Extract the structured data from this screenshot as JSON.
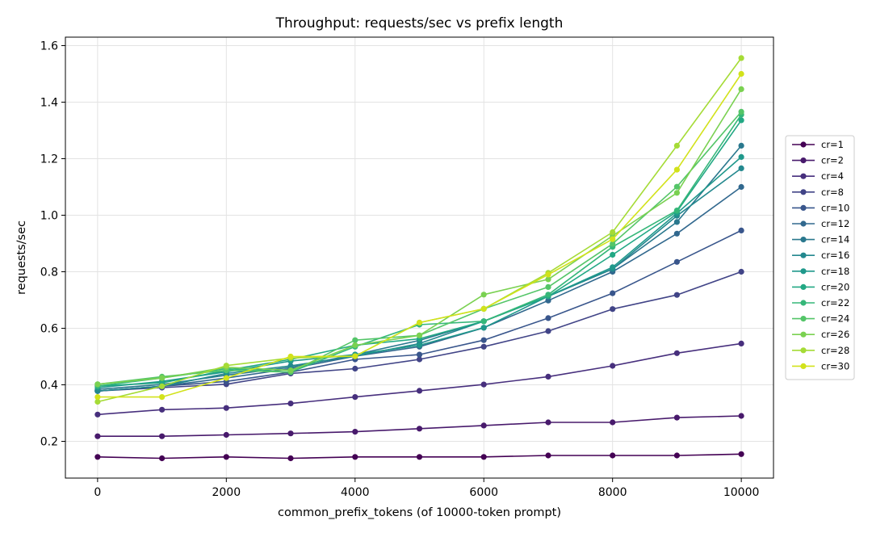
{
  "chart_data": {
    "type": "line",
    "title": "Throughput: requests/sec vs prefix length",
    "xlabel": "common_prefix_tokens (of 10000-token prompt)",
    "ylabel": "requests/sec",
    "xlim": [
      -500,
      10500
    ],
    "ylim": [
      0.07,
      1.63
    ],
    "xticks": [
      0,
      2000,
      4000,
      6000,
      8000,
      10000
    ],
    "yticks": [
      0.2,
      0.4,
      0.6,
      0.8,
      1.0,
      1.2,
      1.4,
      1.6
    ],
    "ytick_labels": [
      "0.2",
      "0.4",
      "0.6",
      "0.8",
      "1.0",
      "1.2",
      "1.4",
      "1.6"
    ],
    "grid": true,
    "legend_position": "right, outside plot",
    "x": [
      0,
      1000,
      2000,
      3000,
      4000,
      5000,
      6000,
      7000,
      8000,
      9000,
      10000
    ],
    "series": [
      {
        "name": "cr=1",
        "color": "#440154",
        "values": [
          0.145,
          0.14,
          0.145,
          0.14,
          0.145,
          0.145,
          0.145,
          0.15,
          0.15,
          0.15,
          0.155
        ]
      },
      {
        "name": "cr=2",
        "color": "#481a6c",
        "values": [
          0.218,
          0.218,
          0.223,
          0.228,
          0.234,
          0.245,
          0.256,
          0.267,
          0.267,
          0.284,
          0.29
        ]
      },
      {
        "name": "cr=4",
        "color": "#472f7d",
        "values": [
          0.295,
          0.312,
          0.318,
          0.334,
          0.357,
          0.379,
          0.401,
          0.429,
          0.467,
          0.512,
          0.546
        ]
      },
      {
        "name": "cr=8",
        "color": "#414487",
        "values": [
          0.378,
          0.39,
          0.402,
          0.44,
          0.457,
          0.49,
          0.535,
          0.59,
          0.668,
          0.718,
          0.8
        ]
      },
      {
        "name": "cr=10",
        "color": "#39568c",
        "values": [
          0.378,
          0.395,
          0.412,
          0.445,
          0.49,
          0.507,
          0.558,
          0.636,
          0.724,
          0.835,
          0.946
        ]
      },
      {
        "name": "cr=12",
        "color": "#31688e",
        "values": [
          0.378,
          0.395,
          0.424,
          0.457,
          0.501,
          0.535,
          0.602,
          0.698,
          0.8,
          0.935,
          1.1
        ]
      },
      {
        "name": "cr=14",
        "color": "#2a788e",
        "values": [
          0.384,
          0.401,
          0.434,
          0.462,
          0.507,
          0.557,
          0.625,
          0.713,
          0.81,
          0.976,
          1.246
        ]
      },
      {
        "name": "cr=16",
        "color": "#23888e",
        "values": [
          0.378,
          0.395,
          0.44,
          0.467,
          0.501,
          0.546,
          0.625,
          0.713,
          0.81,
          0.998,
          1.166
        ]
      },
      {
        "name": "cr=18",
        "color": "#1f988b",
        "values": [
          0.39,
          0.412,
          0.446,
          0.484,
          0.507,
          0.54,
          0.602,
          0.713,
          0.816,
          1.007,
          1.206
        ]
      },
      {
        "name": "cr=20",
        "color": "#22a884",
        "values": [
          0.396,
          0.407,
          0.451,
          0.49,
          0.54,
          0.563,
          0.625,
          0.713,
          0.86,
          1.013,
          1.336
        ]
      },
      {
        "name": "cr=22",
        "color": "#35b779",
        "values": [
          0.396,
          0.424,
          0.457,
          0.445,
          0.535,
          0.613,
          0.625,
          0.719,
          0.888,
          1.017,
          1.356
        ]
      },
      {
        "name": "cr=24",
        "color": "#54c568",
        "values": [
          0.402,
          0.429,
          0.451,
          0.445,
          0.558,
          0.575,
          0.669,
          0.746,
          0.899,
          1.101,
          1.366
        ]
      },
      {
        "name": "cr=26",
        "color": "#7ad151",
        "values": [
          0.402,
          0.424,
          0.462,
          0.451,
          0.54,
          0.575,
          0.719,
          0.773,
          0.927,
          1.079,
          1.446
        ]
      },
      {
        "name": "cr=28",
        "color": "#a5db36",
        "values": [
          0.34,
          0.395,
          0.468,
          0.495,
          0.501,
          0.62,
          0.669,
          0.796,
          0.94,
          1.246,
          1.556
        ]
      },
      {
        "name": "cr=30",
        "color": "#d2e21b",
        "values": [
          0.357,
          0.357,
          0.424,
          0.5,
          0.501,
          0.62,
          0.669,
          0.79,
          0.915,
          1.161,
          1.5
        ]
      }
    ]
  }
}
